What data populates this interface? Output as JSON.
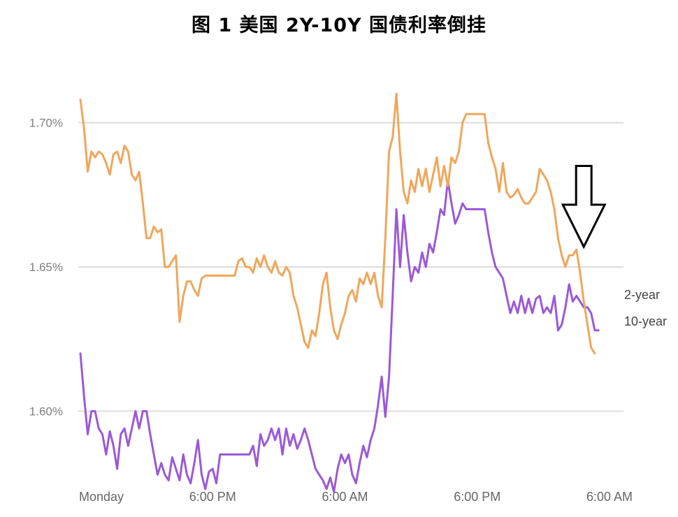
{
  "chart_data": {
    "type": "line",
    "title": "图 1 美国 2Y-10Y 国债利率倒挂",
    "xlabel": "",
    "ylabel": "",
    "ylim": [
      1.573,
      1.728
    ],
    "grid": true,
    "y_ticks": [
      {
        "value": 1.6,
        "label": "1.60%"
      },
      {
        "value": 1.65,
        "label": "1.65%"
      },
      {
        "value": 1.7,
        "label": "1.70%"
      }
    ],
    "x_ticks": [
      {
        "x": 0,
        "label": "Monday"
      },
      {
        "x": 18,
        "label": "6:00 PM"
      },
      {
        "x": 36,
        "label": "6:00 AM"
      },
      {
        "x": 54,
        "label": "6:00 PM"
      },
      {
        "x": 72,
        "label": "6:00 AM"
      }
    ],
    "xlim": [
      0,
      72
    ],
    "series": [
      {
        "name": "2-year",
        "color": "#9b59d6",
        "end_label": "2-year",
        "points": [
          [
            0,
            1.62
          ],
          [
            0.5,
            1.605
          ],
          [
            1,
            1.592
          ],
          [
            1.5,
            1.6
          ],
          [
            2,
            1.6
          ],
          [
            2.5,
            1.594
          ],
          [
            3,
            1.592
          ],
          [
            3.5,
            1.585
          ],
          [
            4,
            1.593
          ],
          [
            4.5,
            1.588
          ],
          [
            5,
            1.58
          ],
          [
            5.5,
            1.592
          ],
          [
            6,
            1.594
          ],
          [
            6.5,
            1.588
          ],
          [
            7,
            1.594
          ],
          [
            7.5,
            1.6
          ],
          [
            8,
            1.594
          ],
          [
            8.5,
            1.6
          ],
          [
            9,
            1.6
          ],
          [
            9.5,
            1.592
          ],
          [
            10,
            1.585
          ],
          [
            10.5,
            1.578
          ],
          [
            11,
            1.582
          ],
          [
            11.5,
            1.578
          ],
          [
            12,
            1.576
          ],
          [
            12.5,
            1.584
          ],
          [
            13,
            1.58
          ],
          [
            13.5,
            1.576
          ],
          [
            14,
            1.585
          ],
          [
            14.5,
            1.578
          ],
          [
            15,
            1.575
          ],
          [
            15.5,
            1.582
          ],
          [
            16,
            1.59
          ],
          [
            16.5,
            1.578
          ],
          [
            17,
            1.573
          ],
          [
            17.5,
            1.579
          ],
          [
            18,
            1.58
          ],
          [
            18.5,
            1.575
          ],
          [
            19,
            1.585
          ],
          [
            19.5,
            1.585
          ],
          [
            20,
            1.585
          ],
          [
            21,
            1.585
          ],
          [
            22,
            1.585
          ],
          [
            23,
            1.585
          ],
          [
            23.5,
            1.588
          ],
          [
            24,
            1.581
          ],
          [
            24.5,
            1.592
          ],
          [
            25,
            1.588
          ],
          [
            25.5,
            1.59
          ],
          [
            26,
            1.594
          ],
          [
            26.5,
            1.59
          ],
          [
            27,
            1.594
          ],
          [
            27.5,
            1.585
          ],
          [
            28,
            1.594
          ],
          [
            28.5,
            1.588
          ],
          [
            29,
            1.592
          ],
          [
            29.5,
            1.587
          ],
          [
            30,
            1.59
          ],
          [
            30.5,
            1.594
          ],
          [
            31,
            1.59
          ],
          [
            31.5,
            1.585
          ],
          [
            32,
            1.58
          ],
          [
            32.5,
            1.578
          ],
          [
            33,
            1.576
          ],
          [
            33.5,
            1.573
          ],
          [
            34,
            1.577
          ],
          [
            34.5,
            1.572
          ],
          [
            35,
            1.58
          ],
          [
            35.5,
            1.585
          ],
          [
            36,
            1.582
          ],
          [
            36.5,
            1.585
          ],
          [
            37,
            1.578
          ],
          [
            37.5,
            1.575
          ],
          [
            38,
            1.582
          ],
          [
            38.5,
            1.588
          ],
          [
            39,
            1.584
          ],
          [
            39.5,
            1.59
          ],
          [
            40,
            1.594
          ],
          [
            40.5,
            1.602
          ],
          [
            41,
            1.612
          ],
          [
            41.5,
            1.598
          ],
          [
            42,
            1.612
          ],
          [
            42.5,
            1.64
          ],
          [
            43,
            1.67
          ],
          [
            43.5,
            1.65
          ],
          [
            44,
            1.668
          ],
          [
            44.5,
            1.655
          ],
          [
            45,
            1.645
          ],
          [
            45.5,
            1.65
          ],
          [
            46,
            1.648
          ],
          [
            46.5,
            1.655
          ],
          [
            47,
            1.65
          ],
          [
            47.5,
            1.658
          ],
          [
            48,
            1.655
          ],
          [
            48.5,
            1.662
          ],
          [
            49,
            1.67
          ],
          [
            49.5,
            1.668
          ],
          [
            50,
            1.68
          ],
          [
            50.5,
            1.672
          ],
          [
            51,
            1.665
          ],
          [
            51.5,
            1.668
          ],
          [
            52,
            1.672
          ],
          [
            52.5,
            1.67
          ],
          [
            53,
            1.67
          ],
          [
            54,
            1.67
          ],
          [
            55,
            1.67
          ],
          [
            55.5,
            1.662
          ],
          [
            56,
            1.655
          ],
          [
            56.5,
            1.65
          ],
          [
            57,
            1.648
          ],
          [
            57.5,
            1.646
          ],
          [
            58,
            1.64
          ],
          [
            58.5,
            1.634
          ],
          [
            59,
            1.638
          ],
          [
            59.5,
            1.634
          ],
          [
            60,
            1.64
          ],
          [
            60.5,
            1.634
          ],
          [
            61,
            1.639
          ],
          [
            61.5,
            1.634
          ],
          [
            62,
            1.639
          ],
          [
            62.5,
            1.64
          ],
          [
            63,
            1.634
          ],
          [
            63.5,
            1.636
          ],
          [
            64,
            1.634
          ],
          [
            64.5,
            1.64
          ],
          [
            65,
            1.628
          ],
          [
            65.5,
            1.63
          ],
          [
            66,
            1.636
          ],
          [
            66.5,
            1.644
          ],
          [
            67,
            1.638
          ],
          [
            67.5,
            1.64
          ],
          [
            68,
            1.638
          ],
          [
            68.5,
            1.636
          ],
          [
            69,
            1.636
          ],
          [
            69.5,
            1.634
          ],
          [
            70,
            1.628
          ],
          [
            70.5,
            1.628
          ]
        ]
      },
      {
        "name": "10-year",
        "color": "#f0a65a",
        "end_label": "10-year",
        "points": [
          [
            0,
            1.708
          ],
          [
            0.5,
            1.698
          ],
          [
            1,
            1.683
          ],
          [
            1.5,
            1.69
          ],
          [
            2,
            1.688
          ],
          [
            2.5,
            1.69
          ],
          [
            3,
            1.689
          ],
          [
            3.5,
            1.686
          ],
          [
            4,
            1.682
          ],
          [
            4.5,
            1.689
          ],
          [
            5,
            1.69
          ],
          [
            5.5,
            1.686
          ],
          [
            6,
            1.692
          ],
          [
            6.5,
            1.69
          ],
          [
            7,
            1.682
          ],
          [
            7.5,
            1.68
          ],
          [
            8,
            1.683
          ],
          [
            8.5,
            1.672
          ],
          [
            9,
            1.66
          ],
          [
            9.5,
            1.66
          ],
          [
            10,
            1.664
          ],
          [
            10.5,
            1.662
          ],
          [
            11,
            1.663
          ],
          [
            11.5,
            1.65
          ],
          [
            12,
            1.65
          ],
          [
            12.5,
            1.652
          ],
          [
            13,
            1.654
          ],
          [
            13.5,
            1.631
          ],
          [
            14,
            1.64
          ],
          [
            14.5,
            1.645
          ],
          [
            15,
            1.645
          ],
          [
            15.5,
            1.642
          ],
          [
            16,
            1.64
          ],
          [
            16.5,
            1.646
          ],
          [
            17,
            1.647
          ],
          [
            17.5,
            1.647
          ],
          [
            18,
            1.647
          ],
          [
            19,
            1.647
          ],
          [
            20,
            1.647
          ],
          [
            21,
            1.647
          ],
          [
            21.5,
            1.652
          ],
          [
            22,
            1.653
          ],
          [
            22.5,
            1.65
          ],
          [
            23,
            1.65
          ],
          [
            23.5,
            1.648
          ],
          [
            24,
            1.653
          ],
          [
            24.5,
            1.65
          ],
          [
            25,
            1.654
          ],
          [
            25.5,
            1.65
          ],
          [
            26,
            1.648
          ],
          [
            26.5,
            1.652
          ],
          [
            27,
            1.648
          ],
          [
            27.5,
            1.647
          ],
          [
            28,
            1.65
          ],
          [
            28.5,
            1.648
          ],
          [
            29,
            1.64
          ],
          [
            29.5,
            1.636
          ],
          [
            30,
            1.63
          ],
          [
            30.5,
            1.624
          ],
          [
            31,
            1.622
          ],
          [
            31.5,
            1.628
          ],
          [
            32,
            1.626
          ],
          [
            32.5,
            1.634
          ],
          [
            33,
            1.644
          ],
          [
            33.5,
            1.648
          ],
          [
            34,
            1.636
          ],
          [
            34.5,
            1.628
          ],
          [
            35,
            1.625
          ],
          [
            35.5,
            1.63
          ],
          [
            36,
            1.634
          ],
          [
            36.5,
            1.64
          ],
          [
            37,
            1.642
          ],
          [
            37.5,
            1.638
          ],
          [
            38,
            1.646
          ],
          [
            38.5,
            1.644
          ],
          [
            39,
            1.648
          ],
          [
            39.5,
            1.644
          ],
          [
            40,
            1.648
          ],
          [
            40.5,
            1.64
          ],
          [
            41,
            1.636
          ],
          [
            41.5,
            1.66
          ],
          [
            42,
            1.69
          ],
          [
            42.5,
            1.695
          ],
          [
            43,
            1.71
          ],
          [
            43.5,
            1.69
          ],
          [
            44,
            1.676
          ],
          [
            44.5,
            1.672
          ],
          [
            45,
            1.68
          ],
          [
            45.5,
            1.676
          ],
          [
            46,
            1.684
          ],
          [
            46.5,
            1.678
          ],
          [
            47,
            1.684
          ],
          [
            47.5,
            1.676
          ],
          [
            48,
            1.682
          ],
          [
            48.5,
            1.688
          ],
          [
            49,
            1.678
          ],
          [
            49.5,
            1.685
          ],
          [
            50,
            1.678
          ],
          [
            50.5,
            1.688
          ],
          [
            51,
            1.686
          ],
          [
            51.5,
            1.69
          ],
          [
            52,
            1.7
          ],
          [
            52.5,
            1.703
          ],
          [
            53,
            1.703
          ],
          [
            54,
            1.703
          ],
          [
            55,
            1.703
          ],
          [
            55.5,
            1.693
          ],
          [
            56,
            1.688
          ],
          [
            56.5,
            1.684
          ],
          [
            57,
            1.676
          ],
          [
            57.5,
            1.686
          ],
          [
            58,
            1.676
          ],
          [
            58.5,
            1.674
          ],
          [
            59,
            1.675
          ],
          [
            59.5,
            1.677
          ],
          [
            60,
            1.674
          ],
          [
            60.5,
            1.672
          ],
          [
            61,
            1.672
          ],
          [
            61.5,
            1.674
          ],
          [
            62,
            1.676
          ],
          [
            62.5,
            1.684
          ],
          [
            63,
            1.682
          ],
          [
            63.5,
            1.68
          ],
          [
            64,
            1.676
          ],
          [
            64.5,
            1.67
          ],
          [
            65,
            1.66
          ],
          [
            65.5,
            1.654
          ],
          [
            66,
            1.65
          ],
          [
            66.5,
            1.654
          ],
          [
            67,
            1.654
          ],
          [
            67.5,
            1.656
          ],
          [
            68,
            1.648
          ],
          [
            68.5,
            1.638
          ],
          [
            69,
            1.63
          ],
          [
            69.5,
            1.622
          ],
          [
            70,
            1.62
          ]
        ]
      }
    ],
    "annotations": [
      {
        "type": "arrow-down",
        "x": 68.5,
        "y_top": 1.685,
        "y_tip": 1.657
      }
    ]
  }
}
